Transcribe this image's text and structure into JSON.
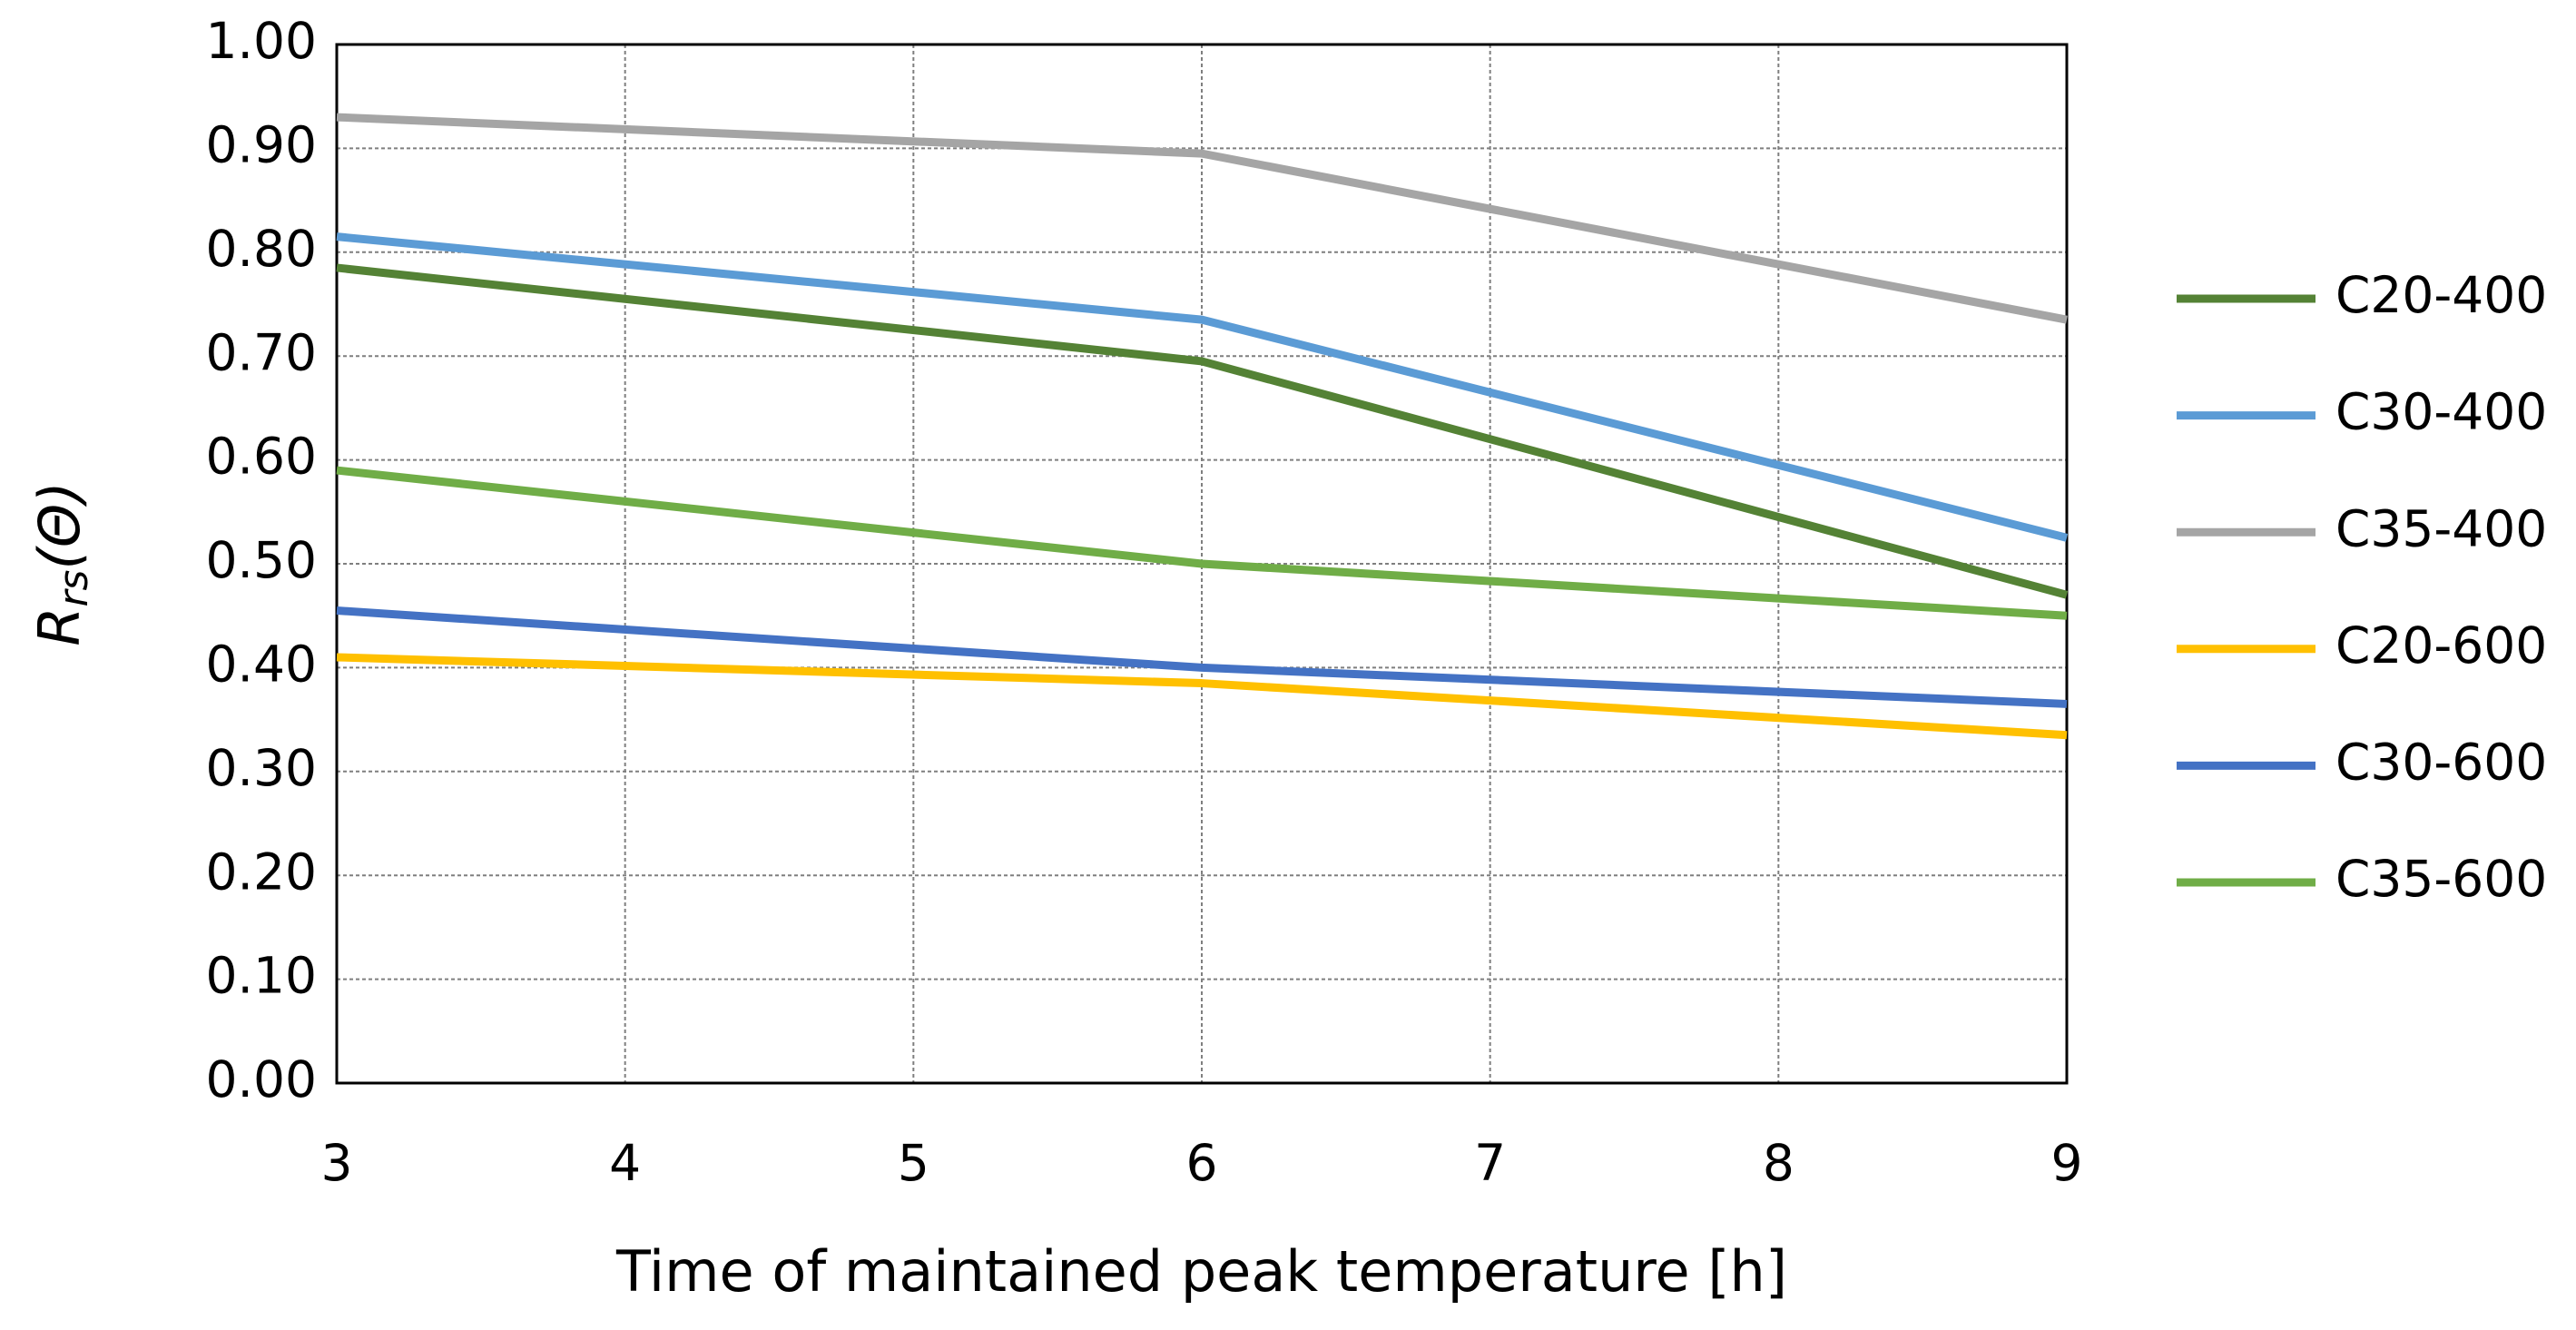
{
  "chart_data": {
    "type": "line",
    "x_label": "Time of maintained peak temperature [h]",
    "y_label": {
      "main": "R",
      "sub": "rs",
      "suffix": "(Θ)"
    },
    "x": [
      3,
      6,
      9
    ],
    "xlim": [
      3,
      9
    ],
    "xticks": [
      3,
      4,
      5,
      6,
      7,
      8,
      9
    ],
    "ylim": [
      0,
      1
    ],
    "yticks": [
      {
        "value": 0,
        "label": "0.00"
      },
      {
        "value": 0.1,
        "label": "0.10"
      },
      {
        "value": 0.2,
        "label": "0.20"
      },
      {
        "value": 0.3,
        "label": "0.30"
      },
      {
        "value": 0.4,
        "label": "0.40"
      },
      {
        "value": 0.5,
        "label": "0.50"
      },
      {
        "value": 0.6,
        "label": "0.60"
      },
      {
        "value": 0.7,
        "label": "0.70"
      },
      {
        "value": 0.8,
        "label": "0.80"
      },
      {
        "value": 0.9,
        "label": "0.90"
      },
      {
        "value": 1,
        "label": "1.00"
      }
    ],
    "grid": true,
    "legend": "right",
    "series": [
      {
        "name": "C20-400",
        "color": "#548235",
        "values": [
          0.785,
          0.695,
          0.47
        ]
      },
      {
        "name": "C30-400",
        "color": "#5b9bd5",
        "values": [
          0.815,
          0.735,
          0.525
        ]
      },
      {
        "name": "C35-400",
        "color": "#a5a5a5",
        "values": [
          0.93,
          0.895,
          0.735
        ]
      },
      {
        "name": "C20-600",
        "color": "#ffc000",
        "values": [
          0.41,
          0.385,
          0.335
        ]
      },
      {
        "name": "C30-600",
        "color": "#4472c4",
        "values": [
          0.455,
          0.4,
          0.365
        ]
      },
      {
        "name": "C35-600",
        "color": "#70ad47",
        "values": [
          0.59,
          0.5,
          0.45
        ]
      }
    ]
  }
}
